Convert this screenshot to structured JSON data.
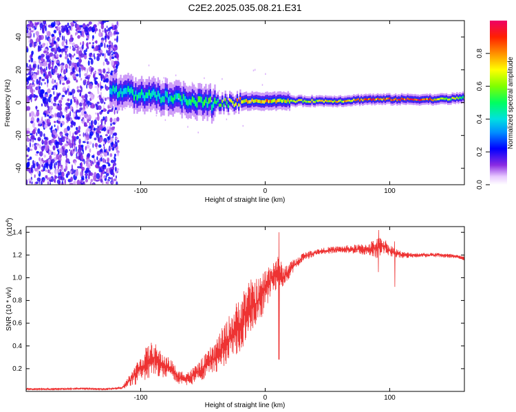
{
  "title": "C2E2.2025.035.08.21.E31",
  "chart_data": [
    {
      "type": "heatmap",
      "title": "C2E2.2025.035.08.21.E31",
      "xlabel": "Height of straight line (km)",
      "ylabel": "Frequency (Hz)",
      "xlim": [
        -192,
        160
      ],
      "ylim": [
        -50,
        50
      ],
      "xticks": [
        -100,
        0,
        100
      ],
      "xtick_labels": [
        "-100",
        "0",
        "100"
      ],
      "yticks": [
        -40,
        -20,
        0,
        20,
        40
      ],
      "ytick_labels": [
        "-40",
        "-20",
        "0",
        "20",
        "40"
      ],
      "colorbar": {
        "label": "Normalized spectral amplitude",
        "range": [
          0,
          1
        ],
        "ticks": [
          0.0,
          0.2,
          0.4,
          0.6,
          0.8
        ],
        "tick_labels": [
          "0.0",
          "0.2",
          "0.4",
          "0.6",
          "0.8"
        ]
      },
      "ridge": {
        "description_points_km": [
          -120,
          -100,
          -80,
          -60,
          -40,
          -20,
          0,
          20,
          40,
          60,
          80,
          100,
          120,
          140,
          160
        ],
        "center_freq_hz": [
          7,
          5,
          3,
          1,
          -1,
          1,
          1,
          1,
          1,
          1,
          2,
          2,
          2,
          2,
          3
        ],
        "peak_amplitude": [
          0.45,
          0.5,
          0.45,
          0.5,
          0.55,
          0.8,
          0.85,
          0.7,
          0.7,
          0.75,
          0.85,
          0.9,
          0.95,
          0.75,
          0.6
        ]
      },
      "noise_region_km": [
        -192,
        -118
      ]
    },
    {
      "type": "line",
      "xlabel": "Height of straight line (km)",
      "ylabel": "SNR (10 * v/v)",
      "scale_label": "(x10",
      "scale_exp": "4",
      "scale_close": ")",
      "xlim": [
        -192,
        160
      ],
      "ylim": [
        0,
        1.45
      ],
      "xticks": [
        -100,
        0,
        100
      ],
      "xtick_labels": [
        "-100",
        "0",
        "100"
      ],
      "yticks": [
        0.2,
        0.4,
        0.6,
        0.8,
        1.0,
        1.2,
        1.4
      ],
      "ytick_labels": [
        "0.2",
        "0.4",
        "0.6",
        "0.8",
        "1.0",
        "1.2",
        "1.4"
      ],
      "color": "#ee3333",
      "series": [
        {
          "name": "SNR",
          "x": [
            -192,
            -170,
            -150,
            -130,
            -120,
            -115,
            -110,
            -100,
            -95,
            -90,
            -85,
            -80,
            -75,
            -70,
            -60,
            -50,
            -40,
            -30,
            -20,
            -15,
            -10,
            -5,
            0,
            5,
            10,
            15,
            20,
            25,
            30,
            40,
            50,
            60,
            70,
            80,
            90,
            95,
            100,
            105,
            110,
            120,
            130,
            140,
            150,
            160
          ],
          "y": [
            0.02,
            0.02,
            0.025,
            0.02,
            0.025,
            0.03,
            0.08,
            0.2,
            0.25,
            0.3,
            0.25,
            0.22,
            0.2,
            0.12,
            0.12,
            0.2,
            0.3,
            0.45,
            0.6,
            0.7,
            0.75,
            0.8,
            0.9,
            1.0,
            1.05,
            1.0,
            1.08,
            1.12,
            1.18,
            1.22,
            1.24,
            1.25,
            1.25,
            1.25,
            1.26,
            1.28,
            1.24,
            1.22,
            1.2,
            1.2,
            1.2,
            1.2,
            1.19,
            1.17
          ],
          "noise_amplitude": [
            0.01,
            0.01,
            0.01,
            0.01,
            0.01,
            0.01,
            0.05,
            0.12,
            0.15,
            0.15,
            0.12,
            0.1,
            0.08,
            0.06,
            0.07,
            0.1,
            0.15,
            0.2,
            0.25,
            0.25,
            0.25,
            0.2,
            0.18,
            0.15,
            0.15,
            0.1,
            0.07,
            0.05,
            0.04,
            0.03,
            0.03,
            0.03,
            0.04,
            0.05,
            0.09,
            0.08,
            0.05,
            0.04,
            0.03,
            0.02,
            0.02,
            0.02,
            0.02,
            0.02
          ]
        }
      ],
      "spikes": [
        {
          "x": 11,
          "y_max": 1.4,
          "y_min": 0.28
        },
        {
          "x": 91,
          "y_max": 1.42,
          "y_min": 1.05
        },
        {
          "x": 104,
          "y_max": 1.32,
          "y_min": 0.92
        }
      ]
    }
  ]
}
